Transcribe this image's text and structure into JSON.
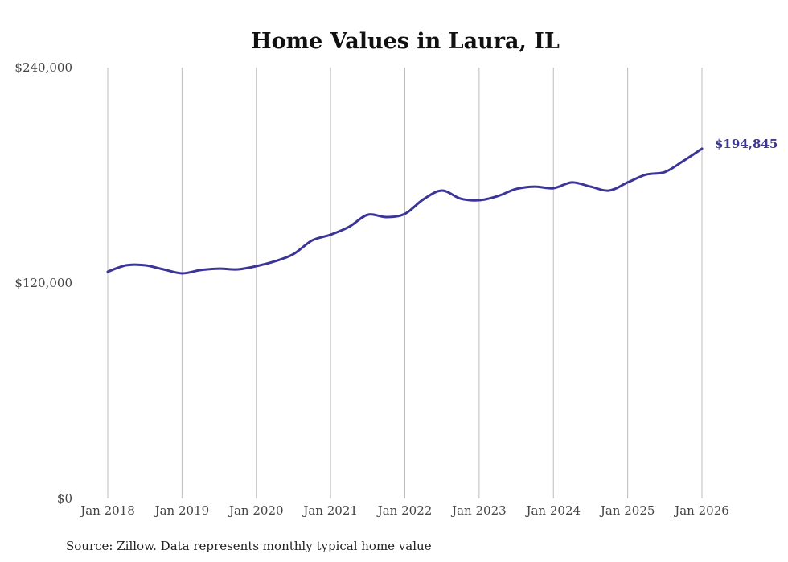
{
  "chart_data": {
    "type": "line",
    "title": "Home Values in Laura, IL",
    "xlabel": "",
    "ylabel": "",
    "ylim": [
      0,
      240000
    ],
    "y_ticks": [
      "$0",
      "$120,000",
      "$240,000"
    ],
    "y_tick_values": [
      0,
      120000,
      240000
    ],
    "x_ticks": [
      "Jan 2018",
      "Jan 2019",
      "Jan 2020",
      "Jan 2021",
      "Jan 2022",
      "Jan 2023",
      "Jan 2024",
      "Jan 2025",
      "Jan 2026"
    ],
    "grid": "vertical",
    "series": [
      {
        "name": "Typical home value",
        "color": "#3b3597",
        "x": [
          2018.0,
          2018.25,
          2018.5,
          2018.75,
          2019.0,
          2019.25,
          2019.5,
          2019.75,
          2020.0,
          2020.25,
          2020.5,
          2020.75,
          2021.0,
          2021.25,
          2021.5,
          2021.75,
          2022.0,
          2022.25,
          2022.5,
          2022.75,
          2023.0,
          2023.25,
          2023.5,
          2023.75,
          2024.0,
          2024.25,
          2024.5,
          2024.75,
          2025.0,
          2025.25,
          2025.5,
          2025.75,
          2026.0
        ],
        "values": [
          126300,
          129900,
          129900,
          127600,
          125400,
          127200,
          128000,
          127600,
          129400,
          132100,
          136100,
          143700,
          146900,
          151300,
          158000,
          156700,
          158500,
          166600,
          171500,
          167000,
          166100,
          168400,
          172400,
          173700,
          172800,
          176000,
          173700,
          171500,
          176000,
          180400,
          181800,
          188000,
          194845
        ]
      }
    ],
    "end_label": "$194,845",
    "source": "Source: Zillow. Data represents monthly typical home value"
  }
}
